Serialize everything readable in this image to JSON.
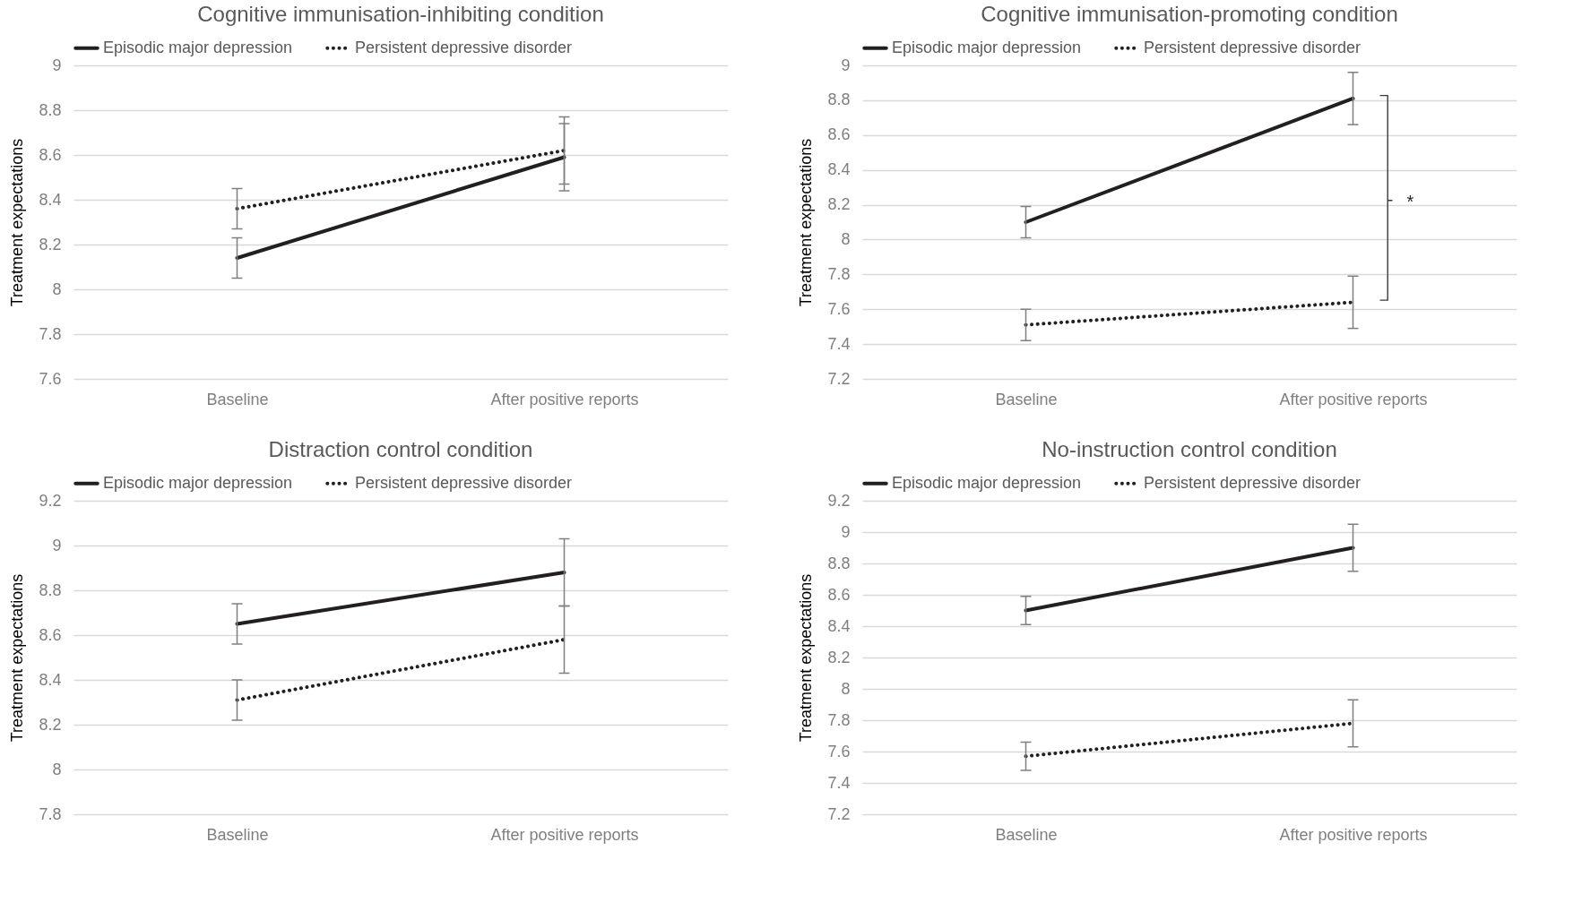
{
  "chart_data": [
    {
      "type": "line",
      "title": "Cognitive immunisation-inhibiting condition",
      "ylabel": "Treatment expectations",
      "categories": [
        "Baseline",
        "After positive reports"
      ],
      "ylim": [
        7.6,
        9
      ],
      "yticks": [
        7.6,
        7.8,
        8,
        8.2,
        8.4,
        8.6,
        8.8,
        9
      ],
      "grid": "y",
      "legend": "top",
      "marker": "none",
      "series": [
        {
          "name": "Episodic major depression",
          "color": "#231f20",
          "line_style": "solid",
          "values": [
            8.14,
            8.59
          ],
          "errors": [
            0.09,
            0.15
          ]
        },
        {
          "name": "Persistent depressive disorder",
          "color": "#231f20",
          "line_style": "dotted",
          "values": [
            8.36,
            8.62
          ],
          "errors": [
            0.09,
            0.15
          ]
        }
      ]
    },
    {
      "type": "line",
      "title": "Cognitive immunisation-promoting condition",
      "ylabel": "Treatment expectations",
      "categories": [
        "Baseline",
        "After positive reports"
      ],
      "ylim": [
        7.2,
        9
      ],
      "yticks": [
        7.2,
        7.4,
        7.6,
        7.8,
        8,
        8.2,
        8.4,
        8.6,
        8.8,
        9
      ],
      "grid": "y",
      "legend": "top",
      "marker": "none",
      "annotations": [
        "*"
      ],
      "series": [
        {
          "name": "Episodic major depression",
          "color": "#231f20",
          "line_style": "solid",
          "values": [
            8.1,
            8.81
          ],
          "errors": [
            0.09,
            0.15
          ]
        },
        {
          "name": "Persistent depressive disorder",
          "color": "#231f20",
          "line_style": "dotted",
          "values": [
            7.51,
            7.64
          ],
          "errors": [
            0.09,
            0.15
          ]
        }
      ]
    },
    {
      "type": "line",
      "title": "Distraction control condition",
      "ylabel": "Treatment expectations",
      "categories": [
        "Baseline",
        "After positive reports"
      ],
      "ylim": [
        7.8,
        9.2
      ],
      "yticks": [
        7.8,
        8,
        8.2,
        8.4,
        8.6,
        8.8,
        9,
        9.2
      ],
      "grid": "y",
      "legend": "top",
      "marker": "none",
      "series": [
        {
          "name": "Episodic major depression",
          "color": "#231f20",
          "line_style": "solid",
          "values": [
            8.65,
            8.88
          ],
          "errors": [
            0.09,
            0.15
          ]
        },
        {
          "name": "Persistent depressive disorder",
          "color": "#231f20",
          "line_style": "dotted",
          "values": [
            8.31,
            8.58
          ],
          "errors": [
            0.09,
            0.15
          ]
        }
      ]
    },
    {
      "type": "line",
      "title": "No-instruction control condition",
      "ylabel": "Treatment expectations",
      "categories": [
        "Baseline",
        "After positive reports"
      ],
      "ylim": [
        7.2,
        9.2
      ],
      "yticks": [
        7.2,
        7.4,
        7.6,
        7.8,
        8,
        8.2,
        8.4,
        8.6,
        8.8,
        9,
        9.2
      ],
      "grid": "y",
      "legend": "top",
      "marker": "none",
      "series": [
        {
          "name": "Episodic major depression",
          "color": "#231f20",
          "line_style": "solid",
          "values": [
            8.5,
            8.9
          ],
          "errors": [
            0.09,
            0.15
          ]
        },
        {
          "name": "Persistent depressive disorder",
          "color": "#231f20",
          "line_style": "dotted",
          "values": [
            7.57,
            7.78
          ],
          "errors": [
            0.09,
            0.15
          ]
        }
      ]
    }
  ]
}
